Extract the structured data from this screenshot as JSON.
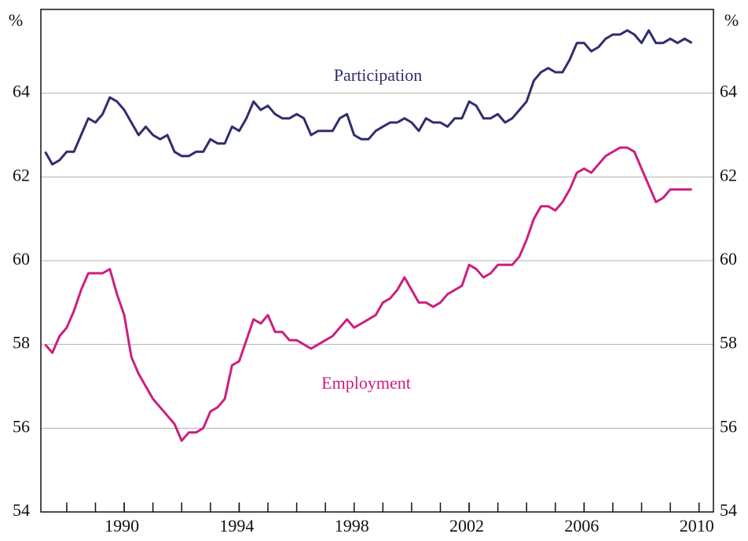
{
  "chart_data": {
    "type": "line",
    "y_unit_left": "%",
    "y_unit_right": "%",
    "xlim": [
      1987.1,
      2010.5
    ],
    "xticks": [
      1990,
      1994,
      1998,
      2002,
      2006,
      2010
    ],
    "ylim": [
      54,
      66
    ],
    "yticks": [
      54,
      56,
      58,
      60,
      62,
      64
    ],
    "grid": true,
    "x": [
      1987.25,
      1987.5,
      1987.75,
      1988,
      1988.25,
      1988.5,
      1988.75,
      1989,
      1989.25,
      1989.5,
      1989.75,
      1990,
      1990.25,
      1990.5,
      1990.75,
      1991,
      1991.25,
      1991.5,
      1991.75,
      1992,
      1992.25,
      1992.5,
      1992.75,
      1993,
      1993.25,
      1993.5,
      1993.75,
      1994,
      1994.25,
      1994.5,
      1994.75,
      1995,
      1995.25,
      1995.5,
      1995.75,
      1996,
      1996.25,
      1996.5,
      1996.75,
      1997,
      1997.25,
      1997.5,
      1997.75,
      1998,
      1998.25,
      1998.5,
      1998.75,
      1999,
      1999.25,
      1999.5,
      1999.75,
      2000,
      2000.25,
      2000.5,
      2000.75,
      2001,
      2001.25,
      2001.5,
      2001.75,
      2002,
      2002.25,
      2002.5,
      2002.75,
      2003,
      2003.25,
      2003.5,
      2003.75,
      2004,
      2004.25,
      2004.5,
      2004.75,
      2005,
      2005.25,
      2005.5,
      2005.75,
      2006,
      2006.25,
      2006.5,
      2006.75,
      2007,
      2007.25,
      2007.5,
      2007.75,
      2008,
      2008.25,
      2008.5,
      2008.75,
      2009,
      2009.25,
      2009.5,
      2009.75
    ],
    "series": [
      {
        "name": "Participation",
        "color": "#2e2e6e",
        "values": [
          62.6,
          62.3,
          62.4,
          62.6,
          62.6,
          63.0,
          63.4,
          63.3,
          63.5,
          63.9,
          63.8,
          63.6,
          63.3,
          63.0,
          63.2,
          63.0,
          62.9,
          63.0,
          62.6,
          62.5,
          62.5,
          62.6,
          62.6,
          62.9,
          62.8,
          62.8,
          63.2,
          63.1,
          63.4,
          63.8,
          63.6,
          63.7,
          63.5,
          63.4,
          63.4,
          63.5,
          63.4,
          63.0,
          63.1,
          63.1,
          63.1,
          63.4,
          63.5,
          63.0,
          62.9,
          62.9,
          63.1,
          63.2,
          63.3,
          63.3,
          63.4,
          63.3,
          63.1,
          63.4,
          63.3,
          63.3,
          63.2,
          63.4,
          63.4,
          63.8,
          63.7,
          63.4,
          63.4,
          63.5,
          63.3,
          63.4,
          63.6,
          63.8,
          64.3,
          64.5,
          64.6,
          64.5,
          64.5,
          64.8,
          65.2,
          65.2,
          65.0,
          65.1,
          65.3,
          65.4,
          65.4,
          65.5,
          65.4,
          65.2,
          65.5,
          65.2,
          65.2,
          65.3,
          65.2,
          65.3,
          65.2
        ]
      },
      {
        "name": "Employment",
        "color": "#cc1f7f",
        "values": [
          58.0,
          57.8,
          58.2,
          58.4,
          58.8,
          59.3,
          59.7,
          59.7,
          59.7,
          59.8,
          59.2,
          58.7,
          57.7,
          57.3,
          57.0,
          56.7,
          56.5,
          56.3,
          56.1,
          55.7,
          55.9,
          55.9,
          56.0,
          56.4,
          56.5,
          56.7,
          57.5,
          57.6,
          58.1,
          58.6,
          58.5,
          58.7,
          58.3,
          58.3,
          58.1,
          58.1,
          58.0,
          57.9,
          58.0,
          58.1,
          58.2,
          58.4,
          58.6,
          58.4,
          58.5,
          58.6,
          58.7,
          59.0,
          59.1,
          59.3,
          59.6,
          59.3,
          59.0,
          59.0,
          58.9,
          59.0,
          59.2,
          59.3,
          59.4,
          59.9,
          59.8,
          59.6,
          59.7,
          59.9,
          59.9,
          59.9,
          60.1,
          60.5,
          61.0,
          61.3,
          61.3,
          61.2,
          61.4,
          61.7,
          62.1,
          62.2,
          62.1,
          62.3,
          62.5,
          62.6,
          62.7,
          62.7,
          62.6,
          62.2,
          61.8,
          61.4,
          61.5,
          61.7,
          61.7,
          61.7,
          61.7
        ]
      }
    ]
  }
}
